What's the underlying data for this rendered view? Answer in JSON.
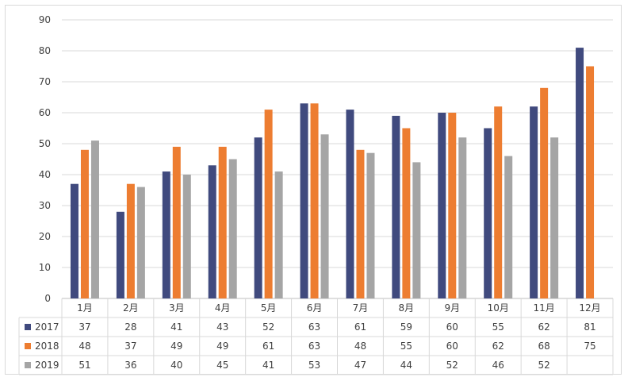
{
  "chart_data": {
    "type": "bar",
    "categories": [
      "1月",
      "2月",
      "3月",
      "4月",
      "5月",
      "6月",
      "7月",
      "8月",
      "9月",
      "10月",
      "11月",
      "12月"
    ],
    "series": [
      {
        "name": "2017",
        "color": "#404a7e",
        "values": [
          37,
          28,
          41,
          43,
          52,
          63,
          61,
          59,
          60,
          55,
          62,
          81
        ]
      },
      {
        "name": "2018",
        "color": "#ed7d31",
        "values": [
          48,
          37,
          49,
          49,
          61,
          63,
          48,
          55,
          60,
          62,
          68,
          75
        ]
      },
      {
        "name": "2019",
        "color": "#a5a5a5",
        "values": [
          51,
          36,
          40,
          45,
          41,
          53,
          47,
          44,
          52,
          46,
          52,
          null
        ]
      }
    ],
    "ylim": [
      0,
      90
    ],
    "yticks": [
      0,
      10,
      20,
      30,
      40,
      50,
      60,
      70,
      80,
      90
    ],
    "grid": true,
    "legend": "data-table-left"
  }
}
